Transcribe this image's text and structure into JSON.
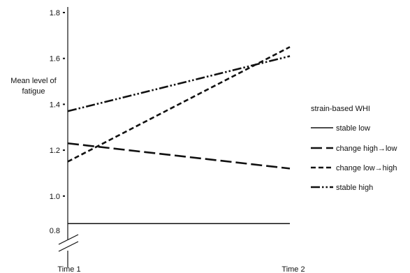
{
  "chart_data": {
    "type": "line",
    "ylabel": [
      "Mean level of",
      "fatigue"
    ],
    "x": [
      "Time 1",
      "Time 2"
    ],
    "yticks": [
      "0.8",
      "1.0",
      "1.2",
      "1.4",
      "1.6",
      "1.8"
    ],
    "ylim": [
      0.8,
      1.8
    ],
    "axis_break": true,
    "legend_title": "strain-based WHI",
    "legend_position": "right",
    "grid": false,
    "series": [
      {
        "name": "stable low",
        "style": "solid",
        "values": [
          0.88,
          0.88
        ]
      },
      {
        "name": "change high→low",
        "style": "long-dash",
        "values": [
          1.23,
          1.12
        ]
      },
      {
        "name": "change low→high",
        "style": "short-dash",
        "values": [
          1.15,
          1.65
        ]
      },
      {
        "name": "stable high",
        "style": "dash-dot-dot",
        "values": [
          1.37,
          1.61
        ]
      }
    ]
  }
}
